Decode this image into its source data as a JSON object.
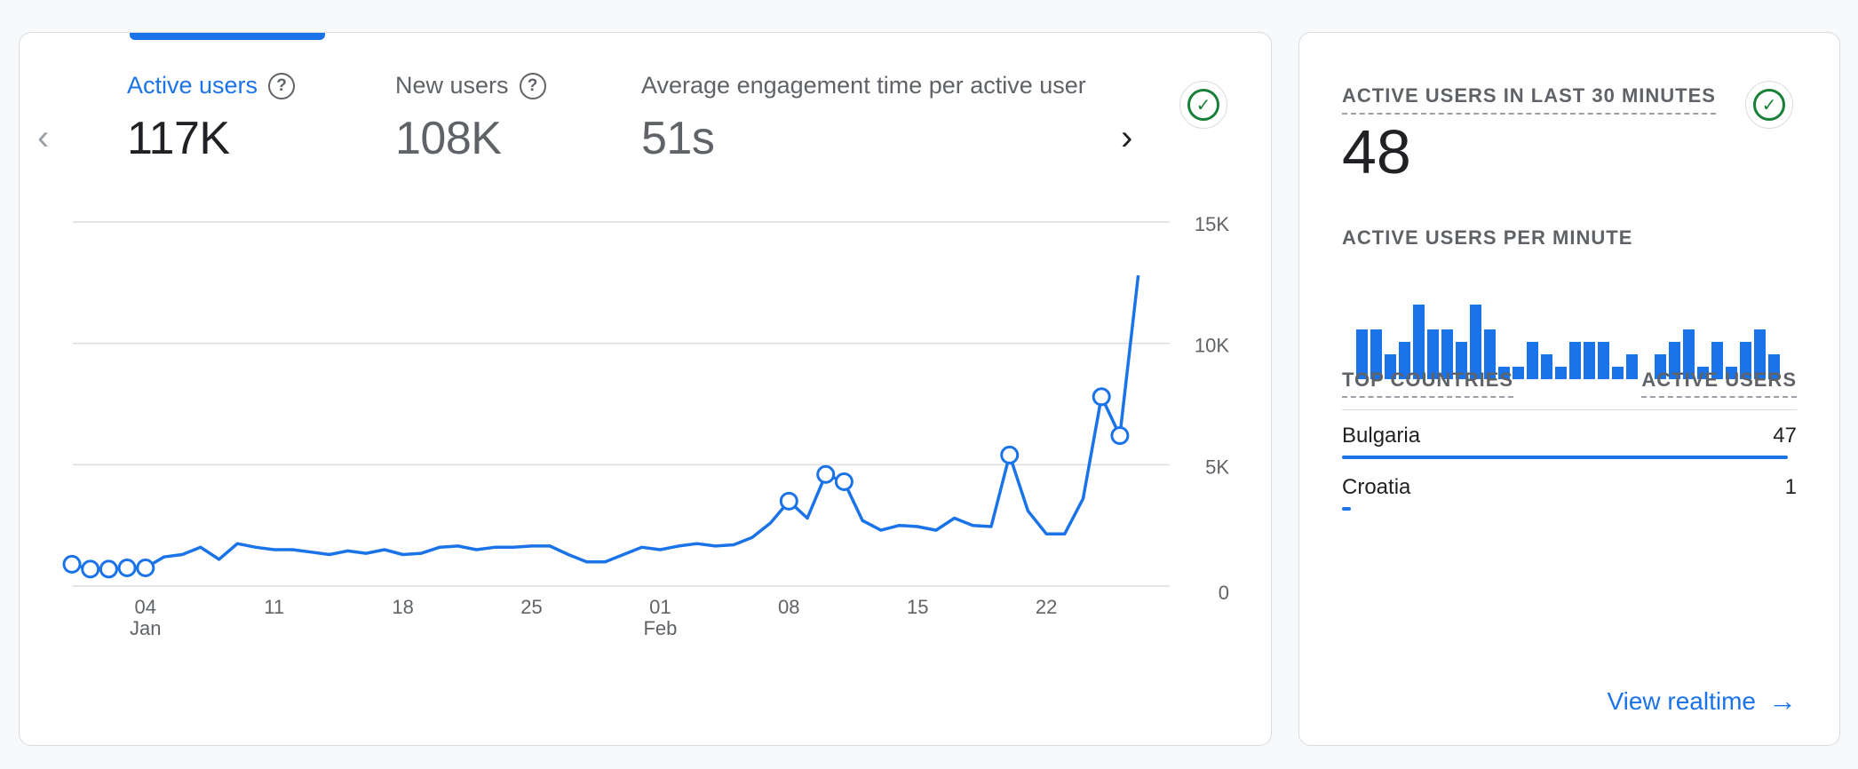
{
  "metrics": [
    {
      "label": "Active users",
      "value": "117K",
      "help_icon": "help-circle-icon"
    },
    {
      "label": "New users",
      "value": "108K",
      "help_icon": "help-circle-icon"
    },
    {
      "label": "Average engagement time per active user",
      "value": "51s"
    }
  ],
  "nav": {
    "prev_icon": "chevron-left-icon",
    "next_icon": "chevron-right-icon"
  },
  "status_icon": "check-circle-icon",
  "colors": {
    "accent": "#1a73e8",
    "success": "#188038",
    "grid": "#dadce0"
  },
  "chart_data": {
    "type": "line",
    "ylim": [
      0,
      15000
    ],
    "y_ticks": [
      "15K",
      "10K",
      "5K",
      "0"
    ],
    "y_tick_values": [
      15000,
      10000,
      5000,
      0
    ],
    "x_ticks": [
      {
        "label": "04",
        "sub": "Jan",
        "day": 4
      },
      {
        "label": "11",
        "sub": "",
        "day": 11
      },
      {
        "label": "18",
        "sub": "",
        "day": 18
      },
      {
        "label": "25",
        "sub": "",
        "day": 25
      },
      {
        "label": "01",
        "sub": "Feb",
        "day": 32
      },
      {
        "label": "08",
        "sub": "",
        "day": 39
      },
      {
        "label": "15",
        "sub": "",
        "day": 46
      },
      {
        "label": "22",
        "sub": "",
        "day": 53
      }
    ],
    "series": [
      {
        "x": [
          0,
          1,
          2,
          3,
          4,
          5,
          6,
          7,
          8,
          9,
          10,
          11,
          12,
          13,
          14,
          15,
          16,
          17,
          18,
          19,
          20,
          21,
          22,
          23,
          24,
          25,
          26,
          27,
          28,
          29,
          30,
          31,
          32,
          33,
          34,
          35,
          36,
          37,
          38,
          39,
          40,
          41,
          42,
          43,
          44,
          45,
          46,
          47,
          48,
          49,
          50,
          51,
          52,
          53,
          54,
          55,
          56,
          57,
          58
        ],
        "values": [
          900,
          700,
          700,
          750,
          750,
          1200,
          1300,
          1600,
          1100,
          1750,
          1600,
          1500,
          1500,
          1400,
          1300,
          1450,
          1350,
          1500,
          1300,
          1350,
          1600,
          1650,
          1500,
          1600,
          1600,
          1650,
          1650,
          1300,
          1000,
          1000,
          1300,
          1600,
          1500,
          1650,
          1750,
          1650,
          1700,
          2000,
          2600,
          3500,
          2800,
          4600,
          4300,
          2700,
          2300,
          2500,
          2450,
          2300,
          2800,
          2500,
          2450,
          5400,
          3100,
          2150,
          2150,
          3600,
          7800,
          6200,
          12800
        ],
        "markers": [
          0,
          1,
          2,
          3,
          4,
          39,
          41,
          42,
          51,
          56,
          57
        ]
      }
    ]
  },
  "realtime": {
    "title": "ACTIVE USERS IN LAST 30 MINUTES",
    "count": "48",
    "per_minute_title": "ACTIVE USERS PER MINUTE",
    "per_minute": [
      2,
      2,
      1,
      1.5,
      3,
      2,
      2,
      1.5,
      3,
      2,
      0.5,
      0.5,
      1.5,
      1,
      0.5,
      1.5,
      1.5,
      1.5,
      0.5,
      1,
      0,
      1,
      1.5,
      2,
      0.5,
      1.5,
      0.5,
      1.5,
      2,
      1
    ],
    "col_countries": "TOP COUNTRIES",
    "col_users": "ACTIVE USERS",
    "countries": [
      {
        "name": "Bulgaria",
        "count": "47",
        "share": 0.98
      },
      {
        "name": "Croatia",
        "count": "1",
        "share": 0.02
      }
    ],
    "link": "View realtime",
    "link_icon": "arrow-right-icon"
  }
}
